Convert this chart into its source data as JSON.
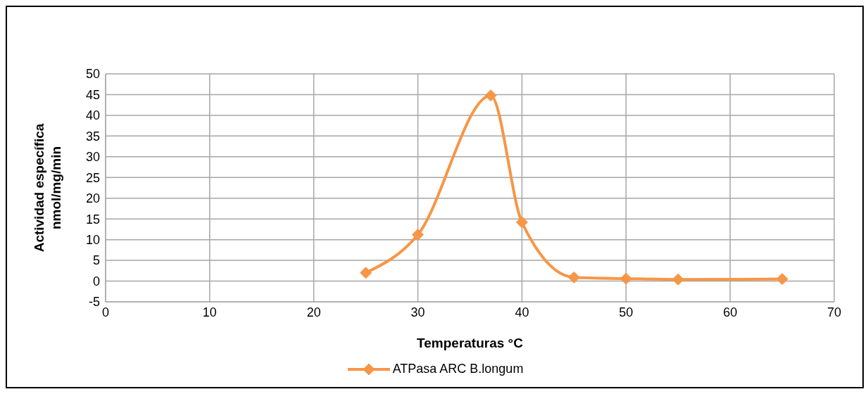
{
  "chart_data": {
    "type": "line",
    "xlabel": "Temperaturas °C",
    "ylabel": "Actividad específica\nnmol/mg/min",
    "x": [
      25,
      30,
      37,
      40,
      45,
      50,
      55,
      65
    ],
    "series": [
      {
        "name": "ATPasa ARC B.longum",
        "color": "#f79646",
        "values": [
          2,
          11.2,
          44.8,
          14.2,
          0.9,
          0.6,
          0.4,
          0.5
        ]
      }
    ],
    "xlim": [
      0,
      70
    ],
    "xticks": [
      0,
      10,
      20,
      30,
      40,
      50,
      60,
      70
    ],
    "ylim": [
      -5,
      50
    ],
    "yticks": [
      -5,
      0,
      5,
      10,
      15,
      20,
      25,
      30,
      35,
      40,
      45,
      50
    ],
    "grid": true,
    "legend": "bottom",
    "marker": "diamond",
    "line_style": "solid"
  }
}
